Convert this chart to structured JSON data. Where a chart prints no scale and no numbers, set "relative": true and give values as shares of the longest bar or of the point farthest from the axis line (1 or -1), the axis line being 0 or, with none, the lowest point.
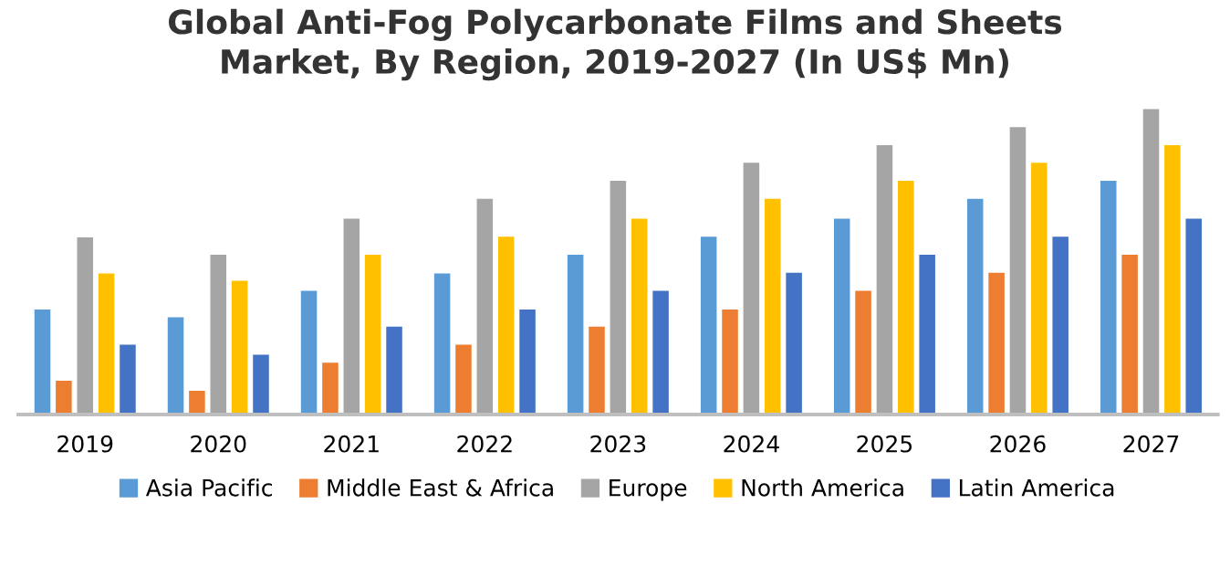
{
  "chart_data": {
    "type": "bar",
    "title": "Global Anti-Fog Polycarbonate Films and Sheets\nMarket, By Region, 2019-2027 (In US$ Mn)",
    "relative": true,
    "legend": "bottom",
    "grid": false,
    "categories": [
      "2019",
      "2020",
      "2021",
      "2022",
      "2023",
      "2024",
      "2025",
      "2026",
      "2027"
    ],
    "series": [
      {
        "name": "Asia Pacific",
        "color": "#5b9bd5",
        "values": [
          0.344,
          0.318,
          0.405,
          0.462,
          0.523,
          0.582,
          0.641,
          0.706,
          0.765
        ]
      },
      {
        "name": "Middle East & Africa",
        "color": "#ed7d31",
        "values": [
          0.111,
          0.078,
          0.17,
          0.229,
          0.288,
          0.344,
          0.405,
          0.464,
          0.523
        ]
      },
      {
        "name": "Europe",
        "color": "#a5a5a5",
        "values": [
          0.58,
          0.523,
          0.641,
          0.706,
          0.765,
          0.824,
          0.882,
          0.941,
          1
        ]
      },
      {
        "name": "North America",
        "color": "#ffc000",
        "values": [
          0.462,
          0.438,
          0.523,
          0.582,
          0.641,
          0.706,
          0.765,
          0.824,
          0.882
        ]
      },
      {
        "name": "Latin America",
        "color": "#4472c4",
        "values": [
          0.229,
          0.196,
          0.288,
          0.344,
          0.405,
          0.464,
          0.523,
          0.582,
          0.641
        ]
      }
    ]
  }
}
